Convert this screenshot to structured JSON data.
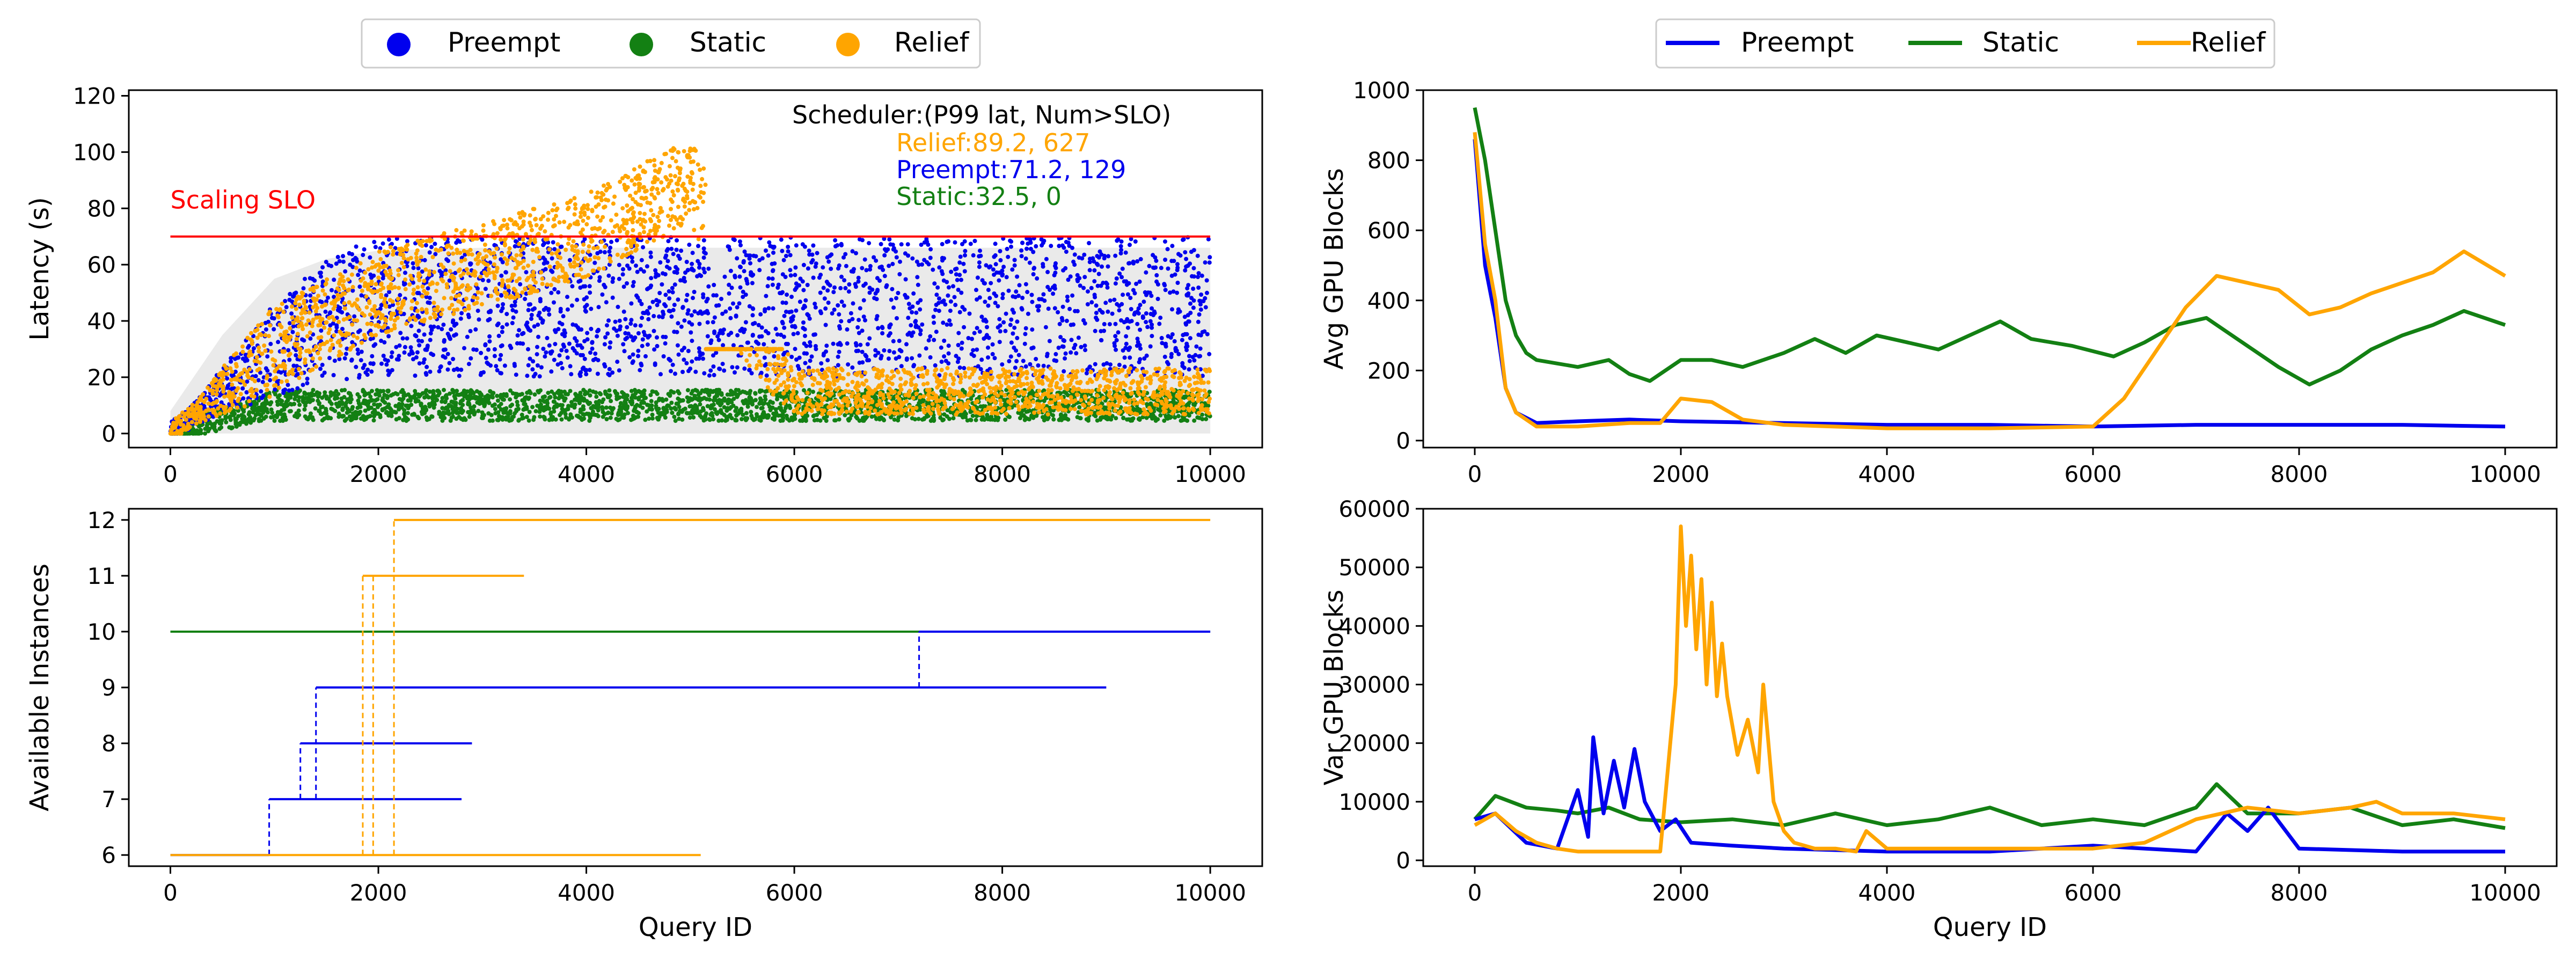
{
  "figure": {
    "series_names": [
      "Preempt",
      "Static",
      "Relief"
    ],
    "colors": {
      "Preempt": "#0000ee",
      "Static": "#138013",
      "Relief": "#ffa500",
      "slo": "#ff0000"
    },
    "legend_left": [
      "Preempt",
      "Static",
      "Relief"
    ],
    "legend_right": [
      "Preempt",
      "Static",
      "Relief"
    ]
  },
  "chart_data": [
    {
      "id": "latency",
      "type": "scatter",
      "title": "",
      "xlabel": "",
      "ylabel": "Latency (s)",
      "xlim": [
        -400,
        10500
      ],
      "ylim": [
        -5,
        122
      ],
      "xticks": [
        0,
        2000,
        4000,
        6000,
        8000,
        10000
      ],
      "yticks": [
        0,
        20,
        40,
        60,
        80,
        100,
        120
      ],
      "slo_value": 70,
      "slo_label": "Scaling SLO",
      "annotation_title": "Scheduler:(P99 lat, Num>SLO)",
      "annotations": [
        {
          "series": "Relief",
          "text": "Relief:89.2, 627"
        },
        {
          "series": "Preempt",
          "text": "Preempt:71.2, 129"
        },
        {
          "series": "Static",
          "text": "Static:32.5, 0"
        }
      ],
      "series": [
        {
          "name": "Preempt",
          "trend": {
            "x": [
              0,
              500,
              1000,
              1500,
              2000,
              3000,
              4000,
              6000,
              8000,
              10000
            ],
            "y": [
              0,
              15,
              30,
              40,
              45,
              45,
              45,
              45,
              45,
              45
            ]
          }
        },
        {
          "name": "Static",
          "trend": {
            "x": [
              0,
              1000,
              2000,
              4000,
              6000,
              8000,
              10000
            ],
            "y": [
              0,
              10,
              10,
              10,
              10,
              10,
              10
            ]
          }
        },
        {
          "name": "Relief",
          "trend": {
            "x": [
              0,
              1000,
              2000,
              3000,
              4000,
              5000,
              6000,
              8000,
              10000
            ],
            "y": [
              0,
              30,
              50,
              60,
              70,
              90,
              15,
              15,
              15
            ]
          }
        }
      ]
    },
    {
      "id": "avg_gpu",
      "type": "line",
      "xlabel": "",
      "ylabel": "Avg GPU Blocks",
      "xlim": [
        -500,
        10500
      ],
      "ylim": [
        -20,
        1000
      ],
      "xticks": [
        0,
        2000,
        4000,
        6000,
        8000,
        10000
      ],
      "yticks": [
        0,
        200,
        400,
        600,
        800,
        1000
      ],
      "series": [
        {
          "name": "Preempt",
          "x": [
            0,
            100,
            200,
            300,
            400,
            600,
            1000,
            1500,
            2000,
            3000,
            4000,
            5000,
            6000,
            7000,
            8000,
            9000,
            10000
          ],
          "y": [
            860,
            500,
            350,
            150,
            80,
            50,
            55,
            60,
            55,
            50,
            45,
            45,
            40,
            45,
            45,
            45,
            40
          ]
        },
        {
          "name": "Static",
          "x": [
            0,
            100,
            200,
            300,
            400,
            500,
            600,
            800,
            1000,
            1300,
            1500,
            1700,
            2000,
            2300,
            2600,
            3000,
            3300,
            3600,
            3900,
            4200,
            4500,
            4800,
            5100,
            5400,
            5800,
            6200,
            6500,
            6800,
            7100,
            7400,
            7800,
            8100,
            8400,
            8700,
            9000,
            9300,
            9600,
            10000
          ],
          "y": [
            950,
            800,
            600,
            400,
            300,
            250,
            230,
            220,
            210,
            230,
            190,
            170,
            230,
            230,
            210,
            250,
            290,
            250,
            300,
            280,
            260,
            300,
            340,
            290,
            270,
            240,
            280,
            330,
            350,
            290,
            210,
            160,
            200,
            260,
            300,
            330,
            370,
            330
          ]
        },
        {
          "name": "Relief",
          "x": [
            0,
            100,
            200,
            300,
            400,
            600,
            1000,
            1500,
            1800,
            2000,
            2300,
            2600,
            3000,
            4000,
            5000,
            6000,
            6300,
            6600,
            6900,
            7200,
            7500,
            7800,
            8100,
            8400,
            8700,
            9000,
            9300,
            9600,
            10000
          ],
          "y": [
            880,
            560,
            400,
            150,
            80,
            40,
            40,
            50,
            50,
            120,
            110,
            60,
            45,
            35,
            35,
            40,
            120,
            250,
            380,
            470,
            450,
            430,
            360,
            380,
            420,
            450,
            480,
            540,
            470
          ]
        }
      ]
    },
    {
      "id": "instances",
      "type": "line",
      "xlabel": "Query ID",
      "ylabel": "Available Instances",
      "xlim": [
        -400,
        10500
      ],
      "ylim": [
        5.8,
        12.2
      ],
      "xticks": [
        0,
        2000,
        4000,
        6000,
        8000,
        10000
      ],
      "yticks": [
        6,
        7,
        8,
        9,
        10,
        11,
        12
      ],
      "series": [
        {
          "name": "Preempt",
          "steps": [
            {
              "from": 0,
              "to": 950,
              "level": 6
            },
            {
              "from": 950,
              "to": 2800,
              "level": 7
            },
            {
              "from": 1250,
              "to": 2900,
              "level": 8
            },
            {
              "from": 1400,
              "to": 9000,
              "level": 9
            },
            {
              "from": 7200,
              "to": 10000,
              "level": 10
            }
          ],
          "risers": [
            950,
            1250,
            1400,
            7200
          ]
        },
        {
          "name": "Static",
          "steps": [
            {
              "from": 0,
              "to": 10000,
              "level": 10
            }
          ],
          "risers": []
        },
        {
          "name": "Relief",
          "steps": [
            {
              "from": 0,
              "to": 5100,
              "level": 6
            },
            {
              "from": 1850,
              "to": 3400,
              "level": 11
            },
            {
              "from": 2150,
              "to": 10000,
              "level": 12
            }
          ],
          "risers": [
            1850,
            1950,
            2150
          ]
        }
      ]
    },
    {
      "id": "var_gpu",
      "type": "line",
      "xlabel": "Query ID",
      "ylabel": "Var GPU Blocks",
      "xlim": [
        -500,
        10500
      ],
      "ylim": [
        -1000,
        60000
      ],
      "xticks": [
        0,
        2000,
        4000,
        6000,
        8000,
        10000
      ],
      "yticks": [
        0,
        10000,
        20000,
        30000,
        40000,
        50000,
        60000
      ],
      "series": [
        {
          "name": "Preempt",
          "x": [
            0,
            200,
            500,
            800,
            1000,
            1100,
            1150,
            1250,
            1350,
            1450,
            1550,
            1650,
            1800,
            1950,
            2100,
            2500,
            3000,
            4000,
            5000,
            6000,
            7000,
            7300,
            7500,
            7700,
            8000,
            9000,
            10000
          ],
          "y": [
            7000,
            8000,
            3000,
            2000,
            12000,
            4000,
            21000,
            8000,
            17000,
            9000,
            19000,
            10000,
            5000,
            7000,
            3000,
            2500,
            2000,
            1500,
            1500,
            2500,
            1500,
            8000,
            5000,
            9000,
            2000,
            1500,
            1500
          ]
        },
        {
          "name": "Static",
          "x": [
            0,
            200,
            500,
            800,
            1000,
            1300,
            1600,
            2000,
            2500,
            3000,
            3500,
            4000,
            4500,
            5000,
            5500,
            6000,
            6500,
            7000,
            7200,
            7500,
            8000,
            8500,
            9000,
            9500,
            10000
          ],
          "y": [
            7000,
            11000,
            9000,
            8500,
            8000,
            9000,
            7000,
            6500,
            7000,
            6000,
            8000,
            6000,
            7000,
            9000,
            6000,
            7000,
            6000,
            9000,
            13000,
            8000,
            8000,
            9000,
            6000,
            7000,
            5500
          ]
        },
        {
          "name": "Relief",
          "x": [
            0,
            200,
            400,
            600,
            800,
            1000,
            1200,
            1500,
            1800,
            1950,
            2000,
            2050,
            2100,
            2150,
            2200,
            2250,
            2300,
            2350,
            2400,
            2450,
            2550,
            2650,
            2750,
            2800,
            2900,
            3000,
            3100,
            3300,
            3500,
            3700,
            3800,
            4000,
            5000,
            6000,
            6500,
            7000,
            7500,
            8000,
            8500,
            8750,
            9000,
            9500,
            10000
          ],
          "y": [
            6000,
            8000,
            5000,
            3000,
            2000,
            1500,
            1500,
            1500,
            1500,
            30000,
            57000,
            40000,
            52000,
            36000,
            48000,
            30000,
            44000,
            28000,
            37000,
            28000,
            18000,
            24000,
            15000,
            30000,
            10000,
            5000,
            3000,
            2000,
            2000,
            1500,
            5000,
            2000,
            2000,
            2000,
            3000,
            7000,
            9000,
            8000,
            9000,
            10000,
            8000,
            8000,
            7000
          ]
        }
      ]
    }
  ]
}
